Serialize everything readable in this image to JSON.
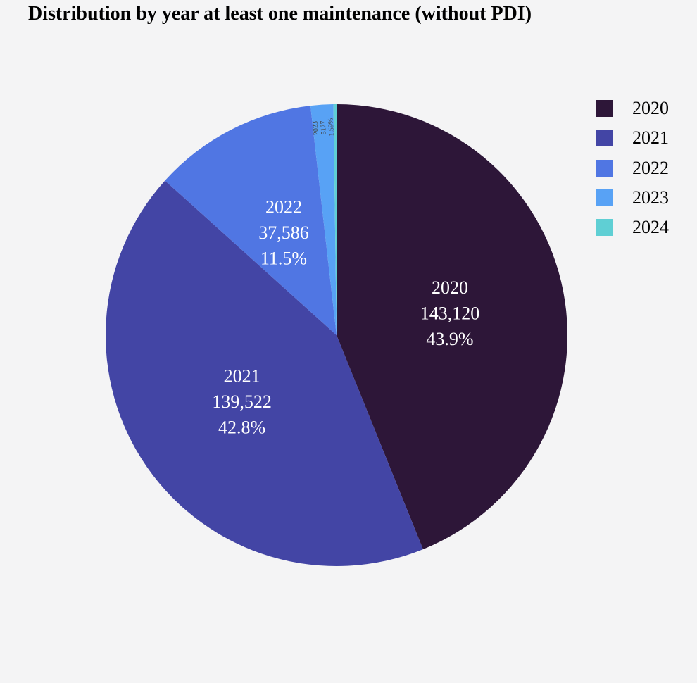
{
  "chart_data": {
    "type": "pie",
    "title": "Distribution by year at least one maintenance (without PDI)",
    "slices": [
      {
        "label": "2020",
        "value": 143120,
        "value_text": "143,120",
        "percent_text": "43.9%",
        "color": "#2d1638"
      },
      {
        "label": "2021",
        "value": 139522,
        "value_text": "139,522",
        "percent_text": "42.8%",
        "color": "#4345a5"
      },
      {
        "label": "2022",
        "value": 37586,
        "value_text": "37,586",
        "percent_text": "11.5%",
        "color": "#5076e3"
      },
      {
        "label": "2023",
        "value": 5177,
        "value_text": "5177",
        "percent_text": "1.59%",
        "color": "#58a2f5"
      },
      {
        "label": "2024",
        "value": 700,
        "value_text": "",
        "percent_text": "",
        "color": "#5fcfd4"
      }
    ],
    "legend": {
      "position": "top-right",
      "entries": [
        "2020",
        "2021",
        "2022",
        "2023",
        "2024"
      ]
    }
  }
}
